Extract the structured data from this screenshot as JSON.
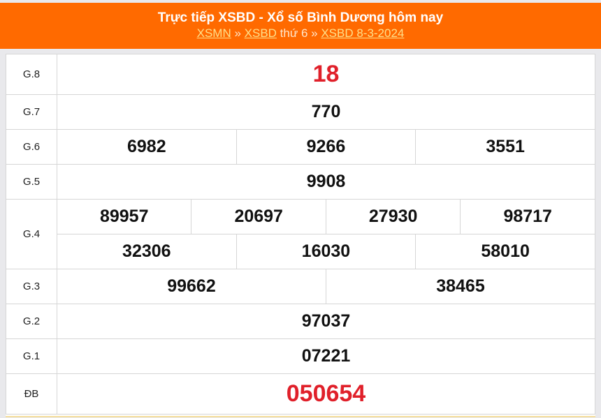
{
  "header": {
    "title": "Trực tiếp XSBD - Xổ số Bình Dương hôm nay",
    "breadcrumb": [
      {
        "label": "XSMN"
      },
      {
        "sep": "»"
      },
      {
        "label": "XSBD"
      },
      {
        "text": "thứ 6"
      },
      {
        "sep2": "»"
      },
      {
        "label": "XSBD 8-3-2024"
      }
    ]
  },
  "crumbs": {
    "a": "XSMN",
    "sep": " » ",
    "b": "XSBD",
    "c": " thứ 6 ",
    "d": "XSBD 8-3-2024"
  },
  "prizes": {
    "g8": {
      "label": "G.8",
      "values": [
        "18"
      ]
    },
    "g7": {
      "label": "G.7",
      "values": [
        "770"
      ]
    },
    "g6": {
      "label": "G.6",
      "values": [
        "6982",
        "9266",
        "3551"
      ]
    },
    "g5": {
      "label": "G.5",
      "values": [
        "9908"
      ]
    },
    "g4": {
      "label": "G.4",
      "values": [
        "89957",
        "20697",
        "27930",
        "98717",
        "32306",
        "16030",
        "58010"
      ]
    },
    "g3": {
      "label": "G.3",
      "values": [
        "99662",
        "38465"
      ]
    },
    "g2": {
      "label": "G.2",
      "values": [
        "97037"
      ]
    },
    "g1": {
      "label": "G.1",
      "values": [
        "07221"
      ]
    },
    "db": {
      "label": "ĐB",
      "values": [
        "050654"
      ]
    }
  },
  "colors": {
    "header": "#ff6a00",
    "highlight": "#e0202a"
  }
}
